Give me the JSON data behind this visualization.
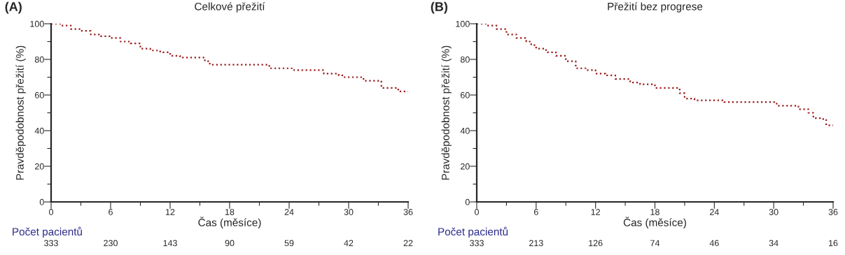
{
  "chart_data": [
    {
      "type": "step",
      "title": "Celkové přežití",
      "xlabel": "Čas (měsíce)",
      "ylabel": "Pravděpodobnost přežití (%)",
      "x": [
        0,
        1,
        2,
        3,
        4,
        5,
        6,
        7,
        8,
        9,
        10,
        11,
        12,
        13,
        15,
        15.5,
        16,
        21,
        22,
        24,
        24.5,
        27,
        27.5,
        29,
        29.5,
        31,
        31.5,
        33,
        33.3,
        34.5,
        35,
        36
      ],
      "series": [
        {
          "color": "#9b1b1b",
          "values": [
            100,
            99,
            97,
            96,
            94,
            93,
            92,
            90,
            89,
            86,
            85,
            84,
            82,
            81,
            81,
            79,
            77,
            77,
            75,
            75,
            74,
            74,
            72,
            71,
            70,
            70,
            68,
            68,
            64,
            64,
            62,
            62
          ]
        }
      ],
      "line_style": "dotted",
      "marker": "none",
      "grid": false,
      "legend": false,
      "xlim": [
        0,
        36
      ],
      "ylim": [
        0,
        100
      ],
      "xticks": [
        0,
        {
          "value": 3,
          "label": null
        },
        6,
        {
          "value": 9,
          "label": null
        },
        12,
        {
          "value": 15,
          "label": null
        },
        18,
        {
          "value": 21,
          "label": null
        },
        24,
        {
          "value": 27,
          "label": null
        },
        30,
        {
          "value": 33,
          "label": null
        },
        36
      ],
      "yticks": [
        0,
        {
          "value": 10,
          "label": null
        },
        20,
        {
          "value": 30,
          "label": null
        },
        40,
        {
          "value": 50,
          "label": null
        },
        60,
        {
          "value": 70,
          "label": null
        },
        80,
        {
          "value": 90,
          "label": null
        },
        100
      ],
      "annotations": [
        "(A)",
        "Počet pacientů",
        "333",
        "230",
        "143",
        "90",
        "59",
        "42",
        "22"
      ]
    },
    {
      "type": "step",
      "title": "Přežití bez progrese",
      "xlabel": "Čas (měsíce)",
      "ylabel": "Pravděpodobnost přežití (%)",
      "x": [
        0,
        1,
        2,
        3,
        4,
        5,
        5.5,
        6,
        7,
        8,
        9,
        10,
        11,
        12,
        13,
        14,
        15.5,
        16.5,
        18,
        20,
        20.5,
        21,
        22,
        24.5,
        25,
        30,
        30.3,
        32,
        32.5,
        33.5,
        34,
        35,
        35.3,
        36
      ],
      "series": [
        {
          "color": "#9b1b1b",
          "values": [
            100,
            99,
            97,
            94,
            92,
            90,
            88,
            86,
            84,
            82,
            79,
            75,
            74,
            72,
            71,
            69,
            67,
            66,
            64,
            64,
            61,
            58,
            57,
            57,
            56,
            56,
            54,
            54,
            52,
            50,
            47,
            46,
            43,
            43
          ]
        }
      ],
      "line_style": "dotted",
      "marker": "none",
      "grid": false,
      "legend": false,
      "xlim": [
        0,
        36
      ],
      "ylim": [
        0,
        100
      ],
      "xticks": [
        0,
        {
          "value": 3,
          "label": null
        },
        6,
        {
          "value": 9,
          "label": null
        },
        12,
        {
          "value": 15,
          "label": null
        },
        18,
        {
          "value": 21,
          "label": null
        },
        24,
        {
          "value": 27,
          "label": null
        },
        30,
        {
          "value": 33,
          "label": null
        },
        36
      ],
      "yticks": [
        0,
        {
          "value": 10,
          "label": null
        },
        20,
        {
          "value": 30,
          "label": null
        },
        40,
        {
          "value": 50,
          "label": null
        },
        60,
        {
          "value": 70,
          "label": null
        },
        80,
        {
          "value": 90,
          "label": null
        },
        100
      ],
      "annotations": [
        "(B)",
        "Počet pacientů",
        "333",
        "213",
        "126",
        "74",
        "46",
        "34",
        "16"
      ]
    }
  ]
}
